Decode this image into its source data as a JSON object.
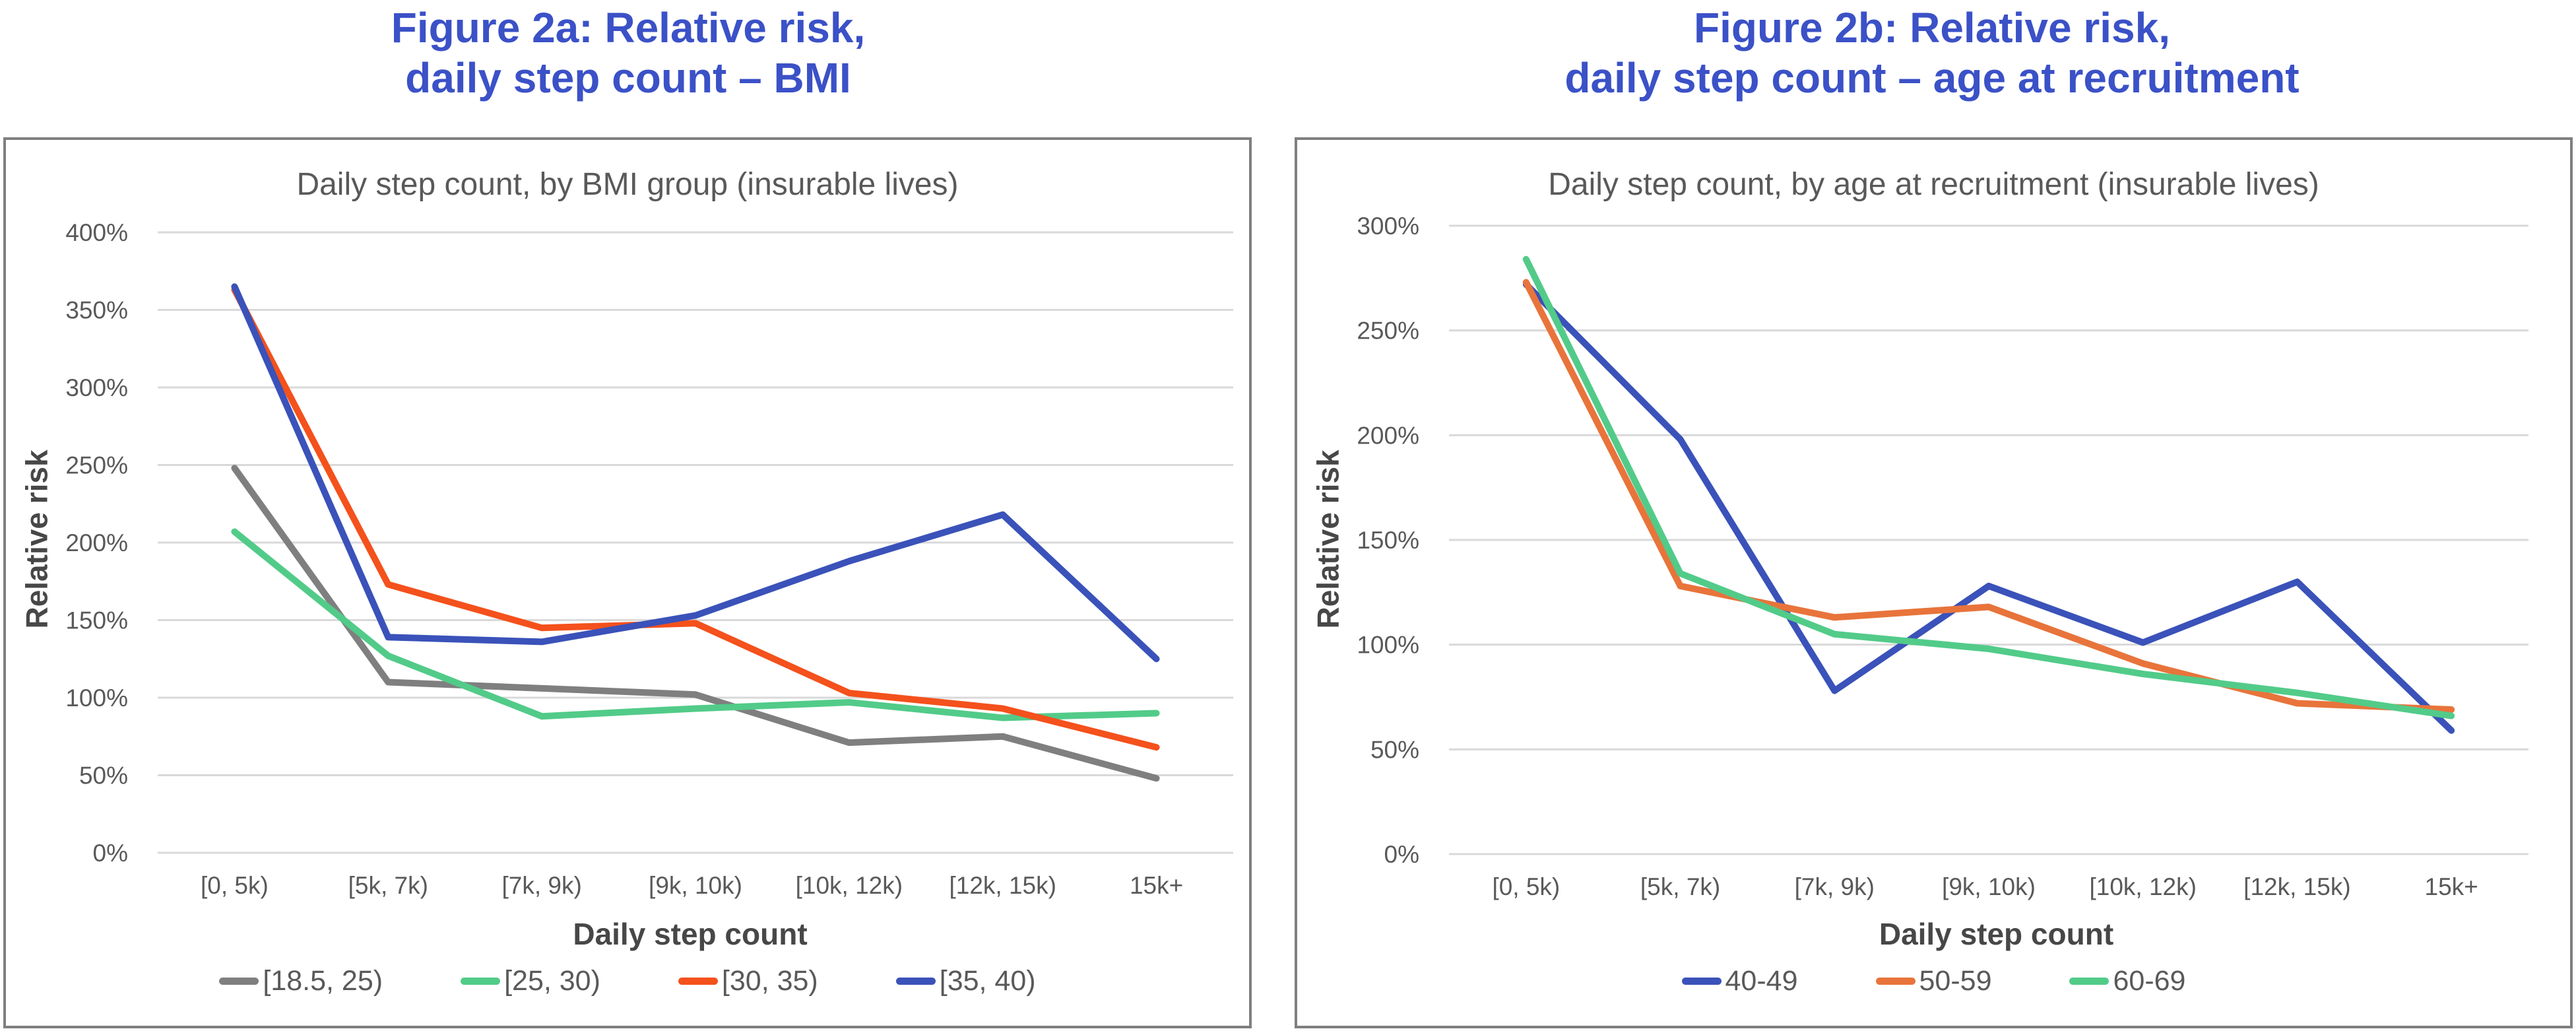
{
  "colors": {
    "figure_title": "#3B51C7",
    "axis_text": "#595959",
    "axis_title_text": "#474747",
    "gridline": "#D9D9D9",
    "box_border": "#7F7F7F",
    "background": "#FFFFFF"
  },
  "chart_data": [
    {
      "type": "line",
      "figure_title_line1": "Figure 2a: Relative risk,",
      "figure_title_line2": "daily step count – BMI",
      "title": "Daily step count, by BMI group (insurable lives)",
      "xlabel": "Daily step count",
      "ylabel": "Relative risk",
      "categories": [
        "[0, 5k)",
        "[5k, 7k)",
        "[7k, 9k)",
        "[9k, 10k)",
        "[10k, 12k)",
        "[12k, 15k)",
        "15k+"
      ],
      "yticks": [
        "0%",
        "50%",
        "100%",
        "150%",
        "200%",
        "250%",
        "300%",
        "350%",
        "400%"
      ],
      "ylim": [
        0,
        400
      ],
      "ytick_step": 50,
      "grid": true,
      "legend_position": "bottom",
      "series": [
        {
          "name": "[18.5, 25)",
          "color": "#7F7F7F",
          "values": [
            248,
            110,
            106,
            102,
            71,
            75,
            48
          ]
        },
        {
          "name": "[25, 30)",
          "color": "#52CB89",
          "values": [
            207,
            127,
            88,
            93,
            97,
            87,
            90
          ]
        },
        {
          "name": "[30, 35)",
          "color": "#F4511C",
          "values": [
            363,
            173,
            145,
            148,
            103,
            93,
            68
          ]
        },
        {
          "name": "[35, 40)",
          "color": "#3A52B9",
          "values": [
            365,
            139,
            136,
            153,
            188,
            218,
            125
          ]
        }
      ]
    },
    {
      "type": "line",
      "figure_title_line1": "Figure 2b: Relative risk,",
      "figure_title_line2": "daily step count – age at recruitment",
      "title": "Daily step count, by age at recruitment (insurable lives)",
      "xlabel": "Daily step count",
      "ylabel": "Relative risk",
      "categories": [
        "[0, 5k)",
        "[5k, 7k)",
        "[7k, 9k)",
        "[9k, 10k)",
        "[10k, 12k)",
        "[12k, 15k)",
        "15k+"
      ],
      "yticks": [
        "0%",
        "50%",
        "100%",
        "150%",
        "200%",
        "250%",
        "300%"
      ],
      "ylim": [
        0,
        300
      ],
      "ytick_step": 50,
      "grid": true,
      "legend_position": "bottom",
      "series": [
        {
          "name": "40-49",
          "color": "#3A52B9",
          "values": [
            272,
            198,
            78,
            128,
            101,
            130,
            59
          ]
        },
        {
          "name": "50-59",
          "color": "#E8743B",
          "values": [
            273,
            128,
            113,
            118,
            91,
            72,
            69
          ]
        },
        {
          "name": "60-69",
          "color": "#52CB89",
          "values": [
            284,
            134,
            105,
            98,
            86,
            77,
            66
          ]
        }
      ]
    }
  ]
}
